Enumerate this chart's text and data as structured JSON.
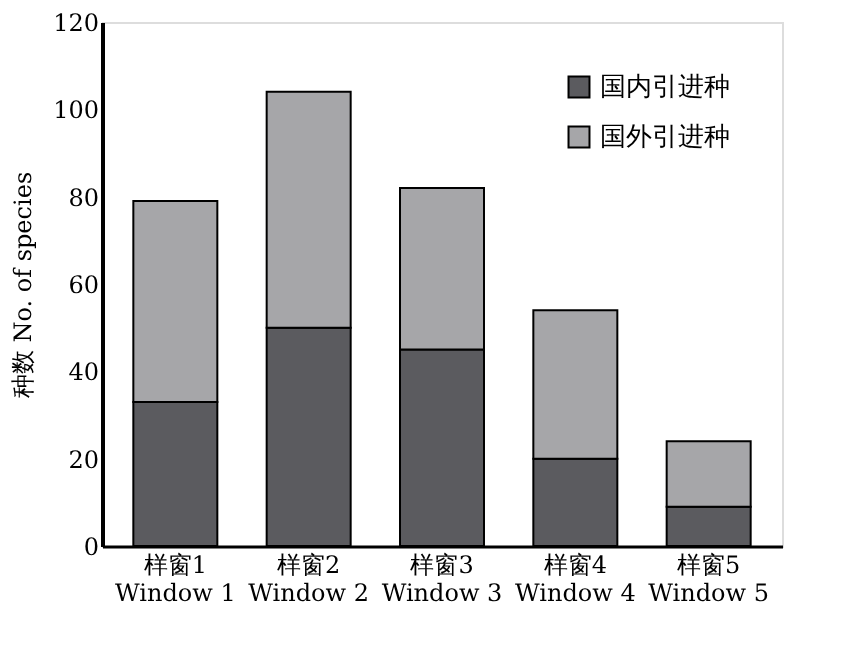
{
  "chart_data": {
    "type": "bar",
    "stacked": true,
    "ylabel": "种数 No. of species",
    "categories": [
      "样窗1\nWindow 1",
      "样窗2\nWindow 2",
      "样窗3\nWindow 3",
      "样窗4\nWindow 4",
      "样窗5\nWindow 5"
    ],
    "series": [
      {
        "name": "国内引进种",
        "color": "#5b5b5f",
        "values": [
          33,
          50,
          45,
          20,
          9
        ]
      },
      {
        "name": "国外引进种",
        "color": "#a6a6a9",
        "values": [
          46,
          54,
          37,
          34,
          15
        ]
      }
    ],
    "ylim": [
      0,
      120
    ],
    "yticks": [
      0,
      20,
      40,
      60,
      80,
      100,
      120
    ],
    "grid": false,
    "legend": "top right"
  }
}
